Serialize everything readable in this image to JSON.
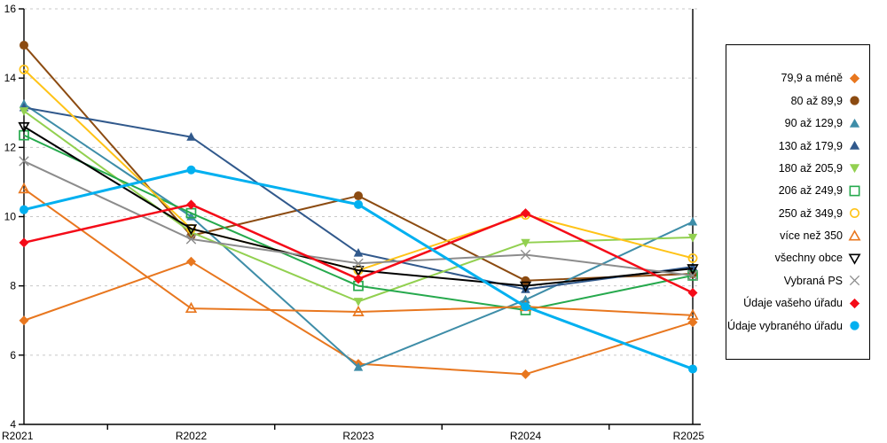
{
  "chart_data": {
    "type": "line",
    "categories": [
      "R2021",
      "R2022",
      "R2023",
      "R2024",
      "R2025"
    ],
    "series": [
      {
        "name": "79,9 a méně",
        "marker": "diamond",
        "fill": "filled",
        "color": "#E8771F",
        "values": [
          7.0,
          8.7,
          5.75,
          5.45,
          6.95
        ]
      },
      {
        "name": "80 až 89,9",
        "marker": "circle",
        "fill": "filled",
        "color": "#8C4B11",
        "values": [
          14.95,
          9.45,
          10.6,
          8.15,
          8.35
        ]
      },
      {
        "name": "90 až 129,9",
        "marker": "triangle-up",
        "fill": "filled",
        "color": "#3E8DA8",
        "values": [
          13.25,
          10.0,
          5.65,
          7.6,
          9.85
        ]
      },
      {
        "name": "130 až 179,9",
        "marker": "triangle-up",
        "fill": "filled",
        "color": "#31598C",
        "values": [
          13.15,
          12.3,
          8.95,
          7.9,
          8.55
        ]
      },
      {
        "name": "180 až 205,9",
        "marker": "triangle-down",
        "fill": "filled",
        "color": "#92D050",
        "values": [
          13.05,
          9.55,
          7.55,
          9.25,
          9.4
        ]
      },
      {
        "name": "206 až 249,9",
        "marker": "square",
        "fill": "open",
        "color": "#26A94D",
        "values": [
          12.35,
          10.1,
          8.0,
          7.3,
          8.3
        ]
      },
      {
        "name": "250 až 349,9",
        "marker": "circle",
        "fill": "open",
        "color": "#FFC317",
        "values": [
          14.25,
          9.65,
          8.45,
          10.05,
          8.8
        ]
      },
      {
        "name": "více než 350",
        "marker": "triangle-up",
        "fill": "open",
        "color": "#E8771F",
        "values": [
          10.8,
          7.35,
          7.25,
          7.4,
          7.15
        ]
      },
      {
        "name": "všechny obce",
        "marker": "triangle-down",
        "fill": "open",
        "color": "#000000",
        "values": [
          12.6,
          9.65,
          8.45,
          8.0,
          8.5
        ]
      },
      {
        "name": "Vybraná PS",
        "marker": "x",
        "fill": "open",
        "color": "#8C8C8C",
        "values": [
          11.6,
          9.35,
          8.65,
          8.9,
          8.3
        ]
      },
      {
        "name": "Údaje vašeho úřadu",
        "marker": "diamond",
        "fill": "filled",
        "color": "#F40B18",
        "values": [
          9.25,
          10.35,
          8.2,
          10.1,
          7.8
        ],
        "width": 2.5
      },
      {
        "name": "Údaje vybraného úřadu",
        "marker": "circle",
        "fill": "filled",
        "color": "#00B0F0",
        "values": [
          10.2,
          11.35,
          10.35,
          7.4,
          5.6
        ],
        "width": 3
      }
    ],
    "title": "",
    "xlabel": "",
    "ylabel": "",
    "ylim": [
      4,
      16
    ],
    "yticks": [
      4,
      6,
      8,
      10,
      12,
      14,
      16
    ],
    "grid": "horizontal-dashed",
    "gridline_color": "#C8C8C8",
    "legend_position": "right"
  }
}
